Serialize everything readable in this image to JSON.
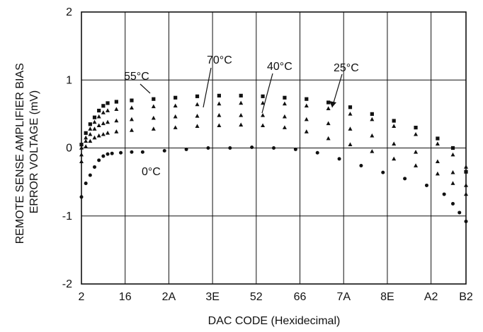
{
  "chart_data": {
    "type": "scatter",
    "xlabel": "DAC CODE (Hexidecimal)",
    "ylabel": "REMOTE SENSE AMPLIFIER BIAS ERROR VOLTAGE (mV)",
    "ylabel_lines": [
      "REMOTE SENSE AMPLIFIER BIAS",
      "ERROR VOLTAGE (mV)"
    ],
    "x_tick_labels": [
      "2",
      "16",
      "2A",
      "3E",
      "52",
      "66",
      "7A",
      "8E",
      "A2",
      "B2"
    ],
    "x_tick_values": [
      2,
      22,
      42,
      62,
      82,
      102,
      122,
      142,
      162,
      178
    ],
    "xlim": [
      2,
      178
    ],
    "y_ticks": [
      -2,
      -1,
      0,
      1,
      2
    ],
    "ylim": [
      -2,
      2
    ],
    "grid": true,
    "series": [
      {
        "name": "0°C",
        "marker": "circle",
        "x": [
          2,
          4,
          6,
          8,
          10,
          12,
          14,
          16,
          20,
          25,
          30,
          40,
          50,
          60,
          70,
          80,
          90,
          100,
          110,
          120,
          130,
          140,
          150,
          160,
          168,
          172,
          175,
          178
        ],
        "y": [
          -0.72,
          -0.52,
          -0.4,
          -0.28,
          -0.18,
          -0.12,
          -0.09,
          -0.08,
          -0.07,
          -0.06,
          -0.06,
          -0.04,
          -0.02,
          0.0,
          0.0,
          0.01,
          0.0,
          -0.02,
          -0.07,
          -0.16,
          -0.26,
          -0.36,
          -0.45,
          -0.55,
          -0.68,
          -0.82,
          -0.95,
          -1.08
        ]
      },
      {
        "name": "25°C",
        "marker": "triangle",
        "x": [
          2,
          4,
          6,
          8,
          10,
          12,
          14,
          18,
          25,
          35,
          45,
          55,
          65,
          75,
          85,
          95,
          105,
          115,
          125,
          135,
          145,
          155,
          165,
          172,
          178
        ],
        "y": [
          -0.2,
          0.02,
          0.1,
          0.15,
          0.18,
          0.2,
          0.22,
          0.24,
          0.26,
          0.28,
          0.3,
          0.32,
          0.33,
          0.34,
          0.33,
          0.3,
          0.24,
          0.14,
          0.05,
          -0.05,
          -0.16,
          -0.26,
          -0.38,
          -0.52,
          -0.68
        ]
      },
      {
        "name": "40°C",
        "marker": "triangle",
        "x": [
          2,
          4,
          6,
          8,
          10,
          12,
          14,
          18,
          25,
          35,
          45,
          55,
          65,
          75,
          85,
          95,
          105,
          115,
          125,
          135,
          145,
          155,
          165,
          172,
          178
        ],
        "y": [
          -0.1,
          0.1,
          0.2,
          0.28,
          0.33,
          0.36,
          0.38,
          0.4,
          0.42,
          0.44,
          0.46,
          0.47,
          0.48,
          0.48,
          0.48,
          0.46,
          0.42,
          0.36,
          0.28,
          0.18,
          0.06,
          -0.06,
          -0.2,
          -0.36,
          -0.55
        ]
      },
      {
        "name": "55°C",
        "marker": "square",
        "x": [
          2,
          4,
          6,
          8,
          10,
          12,
          14,
          18,
          25,
          35,
          45,
          55,
          65,
          75,
          85,
          95,
          105,
          115,
          125,
          135,
          145,
          155,
          165,
          172,
          178
        ],
        "y": [
          0.05,
          0.22,
          0.35,
          0.45,
          0.55,
          0.62,
          0.66,
          0.68,
          0.7,
          0.72,
          0.74,
          0.76,
          0.77,
          0.77,
          0.76,
          0.74,
          0.72,
          0.67,
          0.6,
          0.5,
          0.4,
          0.3,
          0.14,
          0.0,
          -0.35
        ]
      },
      {
        "name": "70°C",
        "marker": "triangle",
        "x": [
          2,
          4,
          6,
          8,
          10,
          12,
          14,
          18,
          25,
          35,
          45,
          55,
          65,
          75,
          85,
          95,
          105,
          115,
          125,
          135,
          145,
          155,
          165,
          172,
          178
        ],
        "y": [
          0.0,
          0.15,
          0.28,
          0.38,
          0.46,
          0.52,
          0.55,
          0.57,
          0.59,
          0.61,
          0.62,
          0.64,
          0.65,
          0.66,
          0.66,
          0.65,
          0.62,
          0.58,
          0.5,
          0.42,
          0.32,
          0.2,
          0.06,
          -0.1,
          -0.28
        ]
      }
    ]
  }
}
